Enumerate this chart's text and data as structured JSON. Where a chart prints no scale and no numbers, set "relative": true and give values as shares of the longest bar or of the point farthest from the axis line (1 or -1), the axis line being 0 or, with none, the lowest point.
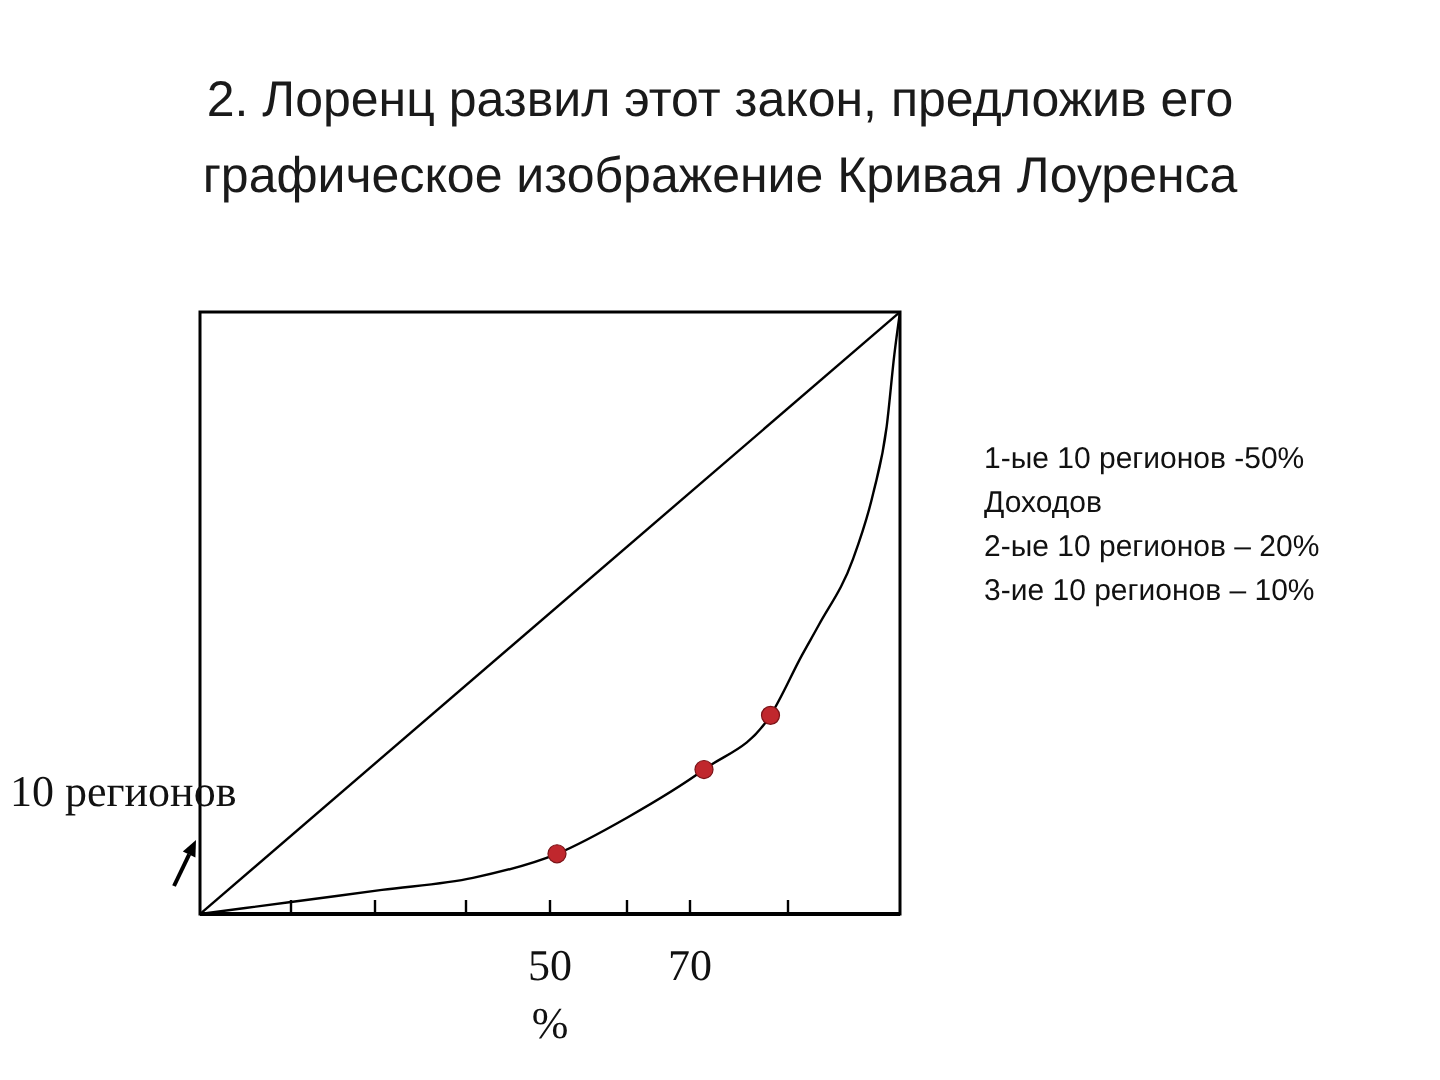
{
  "chart_data": {
    "type": "line",
    "title": "2. Лоренц развил этот закон, предложив его графическое изображение Кривая Лоуренса",
    "relative": true,
    "xlim": [
      0,
      100
    ],
    "xticks": [
      {
        "value": 13,
        "label": null
      },
      {
        "value": 25,
        "label": null
      },
      {
        "value": 38,
        "label": null
      },
      {
        "value": 50,
        "label": "50\n%"
      },
      {
        "value": 61,
        "label": null
      },
      {
        "value": 70,
        "label": "70"
      },
      {
        "value": 84,
        "label": null
      }
    ],
    "series": [
      {
        "color": "#000000",
        "marker": "none",
        "x": [
          0,
          100
        ],
        "values": [
          0,
          1
        ]
      },
      {
        "color": "#000000",
        "marker": "none",
        "x": [
          0,
          13,
          26,
          39,
          51,
          61,
          72,
          81.5,
          86,
          88.4,
          93.3,
          96.2,
          98.1,
          99.2,
          100
        ],
        "values": [
          0,
          0.02,
          0.04,
          0.06,
          0.1,
          0.16,
          0.24,
          0.33,
          0.43,
          0.48,
          0.59,
          0.7,
          0.81,
          0.93,
          1
        ]
      },
      {
        "type": "scatter",
        "color": "#c0272d",
        "marker": "circle",
        "x": [
          51,
          72,
          81.5
        ],
        "values": [
          0.1,
          0.24,
          0.33
        ]
      }
    ],
    "annotations": [
      "10 регионов",
      "1-ые 10 регионов -50%",
      "Доходов",
      "2-ые 10 регионов – 20%",
      "3-ие 10 регионов – 10%"
    ]
  }
}
